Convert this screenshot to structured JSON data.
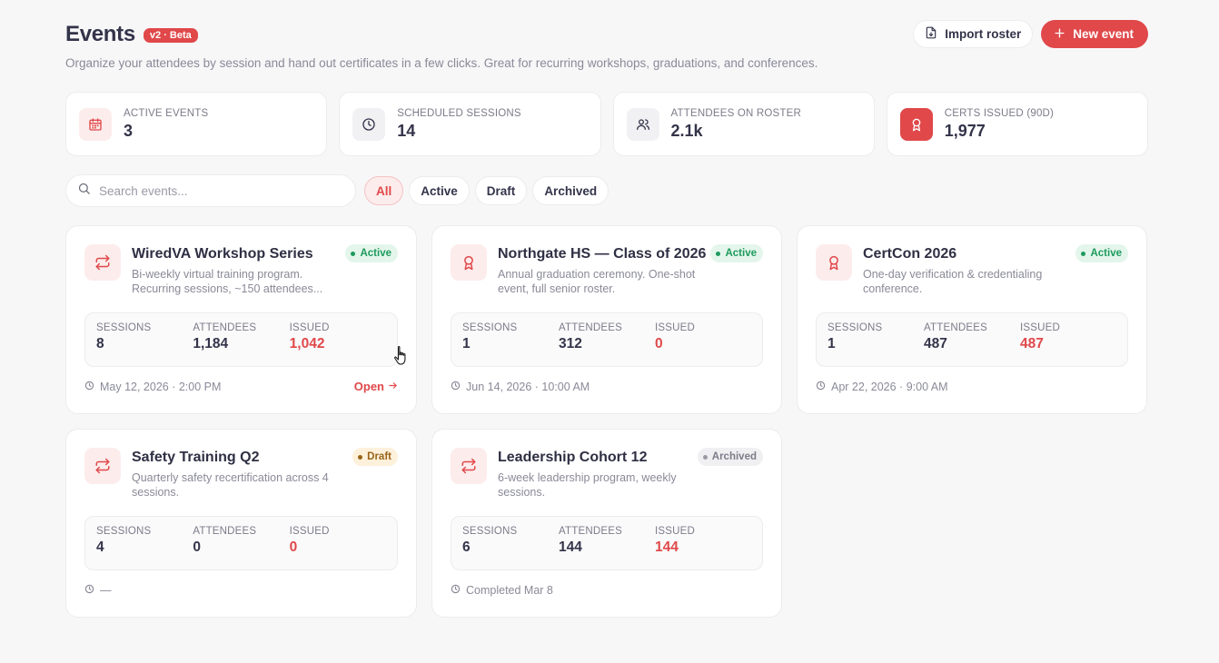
{
  "header": {
    "title": "Events",
    "beta": "v2 · Beta",
    "subtitle": "Organize your attendees by session and hand out certificates in a few clicks. Great for recurring workshops, graduations, and conferences.",
    "import_label": "Import roster",
    "new_label": "New event"
  },
  "stats": [
    {
      "label": "ACTIVE EVENTS",
      "value": "3",
      "icon": "calendar-icon"
    },
    {
      "label": "SCHEDULED SESSIONS",
      "value": "14",
      "icon": "clock-icon"
    },
    {
      "label": "ATTENDEES ON ROSTER",
      "value": "2.1k",
      "icon": "users-icon"
    },
    {
      "label": "CERTS ISSUED (90D)",
      "value": "1,977",
      "icon": "award-icon"
    }
  ],
  "search": {
    "placeholder": "Search events..."
  },
  "filters": [
    "All",
    "Active",
    "Draft",
    "Archived"
  ],
  "metric_labels": {
    "sessions": "SESSIONS",
    "attendees": "ATTENDEES",
    "issued": "ISSUED"
  },
  "cards": [
    {
      "title": "WiredVA Workshop Series",
      "desc": "Bi-weekly virtual training program. Recurring sessions, ~150 attendees...",
      "status": "Active",
      "sessions": "8",
      "attendees": "1,184",
      "issued": "1,042",
      "foot": "May 12, 2026 · 2:00 PM",
      "link": "Open",
      "icon": "repeat-icon"
    },
    {
      "title": "Northgate HS — Class of 2026",
      "desc": "Annual graduation ceremony. One-shot event, full senior roster.",
      "status": "Active",
      "sessions": "1",
      "attendees": "312",
      "issued": "0",
      "foot": "Jun 14, 2026 · 10:00 AM",
      "icon": "award-icon"
    },
    {
      "title": "CertCon 2026",
      "desc": "One-day verification & credentialing conference.",
      "status": "Active",
      "sessions": "1",
      "attendees": "487",
      "issued": "487",
      "foot": "Apr 22, 2026 · 9:00 AM",
      "icon": "award-icon"
    },
    {
      "title": "Safety Training Q2",
      "desc": "Quarterly safety recertification across 4 sessions.",
      "status": "Draft",
      "sessions": "4",
      "attendees": "0",
      "issued": "0",
      "foot": "—",
      "icon": "repeat-icon"
    },
    {
      "title": "Leadership Cohort 12",
      "desc": "6-week leadership program, weekly sessions.",
      "status": "Archived",
      "sessions": "6",
      "attendees": "144",
      "issued": "144",
      "foot": "Completed Mar 8",
      "icon": "repeat-icon"
    }
  ],
  "colors": {
    "accent": "#e0484a",
    "active": "#1e9a5c",
    "draft": "#9a6418",
    "archived": "#7c7c8a"
  }
}
